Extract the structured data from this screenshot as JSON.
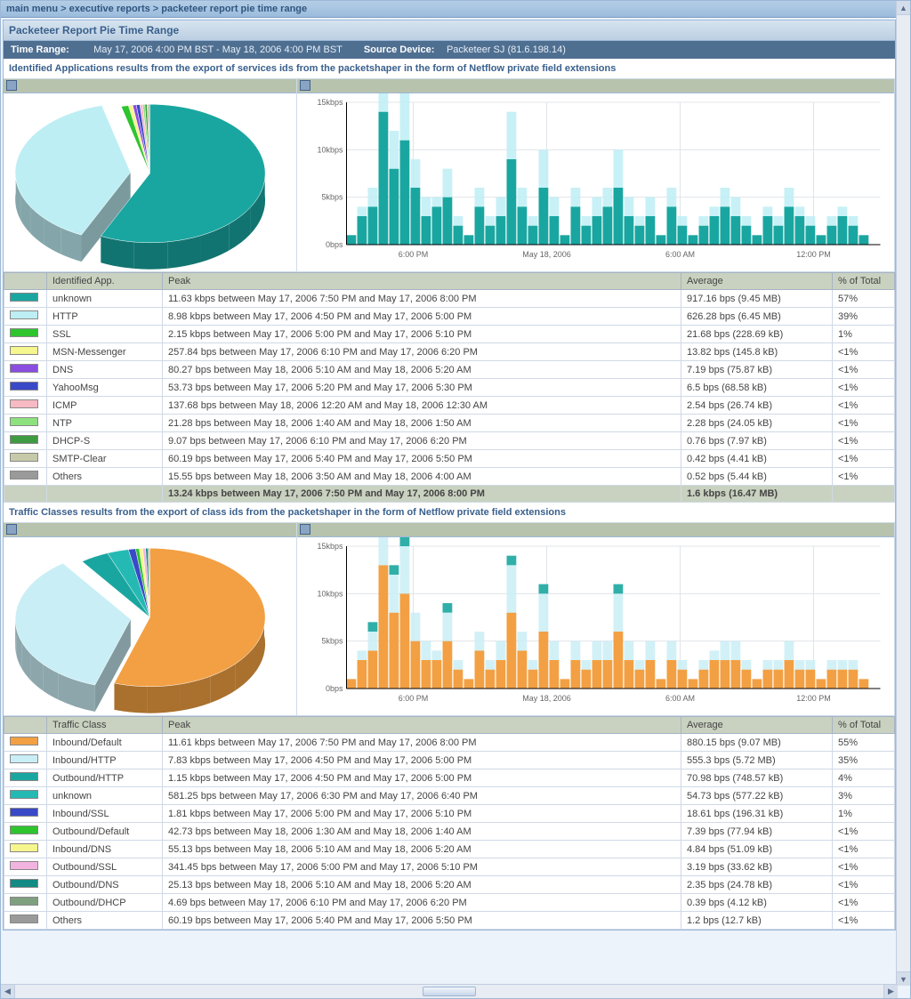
{
  "breadcrumb": {
    "a": "main menu",
    "b": "executive reports",
    "c": "packeteer report pie time range"
  },
  "title": "Packeteer Report Pie Time Range",
  "meta": {
    "tr_label": "Time Range:",
    "tr_value": "May 17, 2006 4:00 PM BST - May 18, 2006 4:00 PM BST",
    "sd_label": "Source Device:",
    "sd_value": "Packeteer SJ (81.6.198.14)"
  },
  "sections": [
    {
      "heading": "Identified Applications results from the export of services ids from the packetshaper in the form of Netflow private field extensions",
      "name_col": "Identified App.",
      "pie": {
        "explode_index": 1,
        "slices": [
          {
            "color": "#1aa6a0",
            "value": 57
          },
          {
            "color": "#bdeef4",
            "value": 39
          },
          {
            "color": "#2ec42e",
            "value": 1
          },
          {
            "color": "#f6f68e",
            "value": 0.6
          },
          {
            "color": "#8a4de0",
            "value": 0.5
          },
          {
            "color": "#3a49c7",
            "value": 0.5
          },
          {
            "color": "#f7b9c3",
            "value": 0.4
          },
          {
            "color": "#8de27e",
            "value": 0.3
          },
          {
            "color": "#3f9a42",
            "value": 0.3
          },
          {
            "color": "#c7caa8",
            "value": 0.2
          },
          {
            "color": "#9a9a9a",
            "value": 0.2
          }
        ],
        "swatch_colors": [
          "#1aa6a0",
          "#bdeef4",
          "#2ec42e",
          "#f6f68e",
          "#8a4de0",
          "#3a49c7",
          "#f7b9c3",
          "#8de27e",
          "#3f9a42",
          "#c7caa8",
          "#9a9a9a"
        ]
      },
      "timeseries": {
        "ymax": 15,
        "yticks": [
          "0bps",
          "5kbps",
          "10kbps",
          "15kbps"
        ],
        "xticks": [
          "6:00 PM",
          "May 18, 2006",
          "6:00 AM",
          "12:00 PM"
        ],
        "grid_color": "#e0e4ea",
        "series": [
          {
            "color": "#1aa6a0",
            "alpha": 1,
            "vals": [
              1,
              3,
              4,
              14,
              8,
              11,
              6,
              3,
              4,
              5,
              2,
              1,
              4,
              2,
              3,
              9,
              4,
              2,
              6,
              3,
              1,
              4,
              2,
              3,
              4,
              6,
              3,
              2,
              3,
              1,
              4,
              2,
              1,
              2,
              3,
              4,
              3,
              2,
              1,
              3,
              2,
              4,
              3,
              2,
              1,
              2,
              3,
              2,
              1,
              0
            ]
          },
          {
            "color": "#bdeef4",
            "alpha": 0.85,
            "vals": [
              0,
              1,
              2,
              6,
              4,
              5,
              3,
              2,
              1,
              3,
              1,
              0,
              2,
              1,
              2,
              5,
              2,
              1,
              4,
              2,
              0,
              2,
              1,
              2,
              2,
              4,
              2,
              1,
              2,
              0,
              2,
              1,
              0,
              1,
              1,
              2,
              2,
              1,
              0,
              1,
              1,
              2,
              1,
              1,
              0,
              1,
              1,
              1,
              0,
              0
            ]
          }
        ]
      },
      "rows": [
        {
          "name": "unknown",
          "peak": "11.63 kbps between May 17, 2006 7:50 PM and May 17, 2006 8:00 PM",
          "avg": "917.16 bps (9.45 MB)",
          "pct": "57%"
        },
        {
          "name": "HTTP",
          "peak": "8.98 kbps between May 17, 2006 4:50 PM and May 17, 2006 5:00 PM",
          "avg": "626.28 bps (6.45 MB)",
          "pct": "39%"
        },
        {
          "name": "SSL",
          "peak": "2.15 kbps between May 17, 2006 5:00 PM and May 17, 2006 5:10 PM",
          "avg": "21.68 bps (228.69 kB)",
          "pct": "1%"
        },
        {
          "name": "MSN-Messenger",
          "peak": "257.84 bps between May 17, 2006 6:10 PM and May 17, 2006 6:20 PM",
          "avg": "13.82 bps (145.8 kB)",
          "pct": "<1%"
        },
        {
          "name": "DNS",
          "peak": "80.27 bps between May 18, 2006 5:10 AM and May 18, 2006 5:20 AM",
          "avg": "7.19 bps (75.87 kB)",
          "pct": "<1%"
        },
        {
          "name": "YahooMsg",
          "peak": "53.73 bps between May 17, 2006 5:20 PM and May 17, 2006 5:30 PM",
          "avg": "6.5 bps (68.58 kB)",
          "pct": "<1%"
        },
        {
          "name": "ICMP",
          "peak": "137.68 bps between May 18, 2006 12:20 AM and May 18, 2006 12:30 AM",
          "avg": "2.54 bps (26.74 kB)",
          "pct": "<1%"
        },
        {
          "name": "NTP",
          "peak": "21.28 bps between May 18, 2006 1:40 AM and May 18, 2006 1:50 AM",
          "avg": "2.28 bps (24.05 kB)",
          "pct": "<1%"
        },
        {
          "name": "DHCP-S",
          "peak": "9.07 bps between May 17, 2006 6:10 PM and May 17, 2006 6:20 PM",
          "avg": "0.76 bps (7.97 kB)",
          "pct": "<1%"
        },
        {
          "name": "SMTP-Clear",
          "peak": "60.19 bps between May 17, 2006 5:40 PM and May 17, 2006 5:50 PM",
          "avg": "0.42 bps (4.41 kB)",
          "pct": "<1%"
        },
        {
          "name": "Others",
          "peak": "15.55 bps between May 18, 2006 3:50 AM and May 18, 2006 4:00 AM",
          "avg": "0.52 bps (5.44 kB)",
          "pct": "<1%"
        }
      ],
      "totals": {
        "peak": "13.24 kbps between May 17, 2006 7:50 PM and May 17, 2006 8:00 PM",
        "avg": "1.6 kbps (16.47 MB)",
        "pct": ""
      }
    },
    {
      "heading": "Traffic Classes results from the export of class ids from the packetshaper in the form of Netflow private field extensions",
      "name_col": "Traffic Class",
      "pie": {
        "explode_index": 1,
        "slices": [
          {
            "color": "#f2a043",
            "value": 55
          },
          {
            "color": "#c9eef6",
            "value": 35
          },
          {
            "color": "#1aa6a0",
            "value": 4
          },
          {
            "color": "#25b9b3",
            "value": 3
          },
          {
            "color": "#3a49c7",
            "value": 1
          },
          {
            "color": "#2ec42e",
            "value": 0.5
          },
          {
            "color": "#f6f68e",
            "value": 0.5
          },
          {
            "color": "#f3b3e1",
            "value": 0.4
          },
          {
            "color": "#138a84",
            "value": 0.3
          },
          {
            "color": "#7fa07f",
            "value": 0.2
          },
          {
            "color": "#9a9a9a",
            "value": 0.1
          }
        ],
        "swatch_colors": [
          "#f2a043",
          "#c9eef6",
          "#1aa6a0",
          "#25b9b3",
          "#3a49c7",
          "#2ec42e",
          "#f6f68e",
          "#f3b3e1",
          "#138a84",
          "#7fa07f",
          "#9a9a9a"
        ]
      },
      "timeseries": {
        "ymax": 15,
        "yticks": [
          "0bps",
          "5kbps",
          "10kbps",
          "15kbps"
        ],
        "xticks": [
          "6:00 PM",
          "May 18, 2006",
          "6:00 AM",
          "12:00 PM"
        ],
        "grid_color": "#e0e4ea",
        "series": [
          {
            "color": "#f2a043",
            "alpha": 1,
            "vals": [
              1,
              3,
              4,
              13,
              8,
              10,
              5,
              3,
              3,
              5,
              2,
              1,
              4,
              2,
              3,
              8,
              4,
              2,
              6,
              3,
              1,
              3,
              2,
              3,
              3,
              6,
              3,
              2,
              3,
              1,
              3,
              2,
              1,
              2,
              3,
              3,
              3,
              2,
              1,
              2,
              2,
              3,
              2,
              2,
              1,
              2,
              2,
              2,
              1,
              0
            ]
          },
          {
            "color": "#c9eef6",
            "alpha": 0.85,
            "vals": [
              0,
              1,
              2,
              6,
              4,
              5,
              3,
              2,
              1,
              3,
              1,
              0,
              2,
              1,
              2,
              5,
              2,
              1,
              4,
              2,
              0,
              2,
              1,
              2,
              2,
              4,
              2,
              1,
              2,
              0,
              2,
              1,
              0,
              1,
              1,
              2,
              2,
              1,
              0,
              1,
              1,
              2,
              1,
              1,
              0,
              1,
              1,
              1,
              0,
              0
            ]
          },
          {
            "color": "#1aa6a0",
            "alpha": 0.9,
            "vals": [
              0,
              0,
              1,
              2,
              1,
              1,
              0,
              0,
              0,
              1,
              0,
              0,
              0,
              0,
              0,
              1,
              0,
              0,
              1,
              0,
              0,
              0,
              0,
              0,
              0,
              1,
              0,
              0,
              0,
              0,
              0,
              0,
              0,
              0,
              0,
              0,
              0,
              0,
              0,
              0,
              0,
              0,
              0,
              0,
              0,
              0,
              0,
              0,
              0,
              0
            ]
          }
        ]
      },
      "rows": [
        {
          "name": "Inbound/Default",
          "peak": "11.61 kbps between May 17, 2006 7:50 PM and May 17, 2006 8:00 PM",
          "avg": "880.15 bps (9.07 MB)",
          "pct": "55%"
        },
        {
          "name": "Inbound/HTTP",
          "peak": "7.83 kbps between May 17, 2006 4:50 PM and May 17, 2006 5:00 PM",
          "avg": "555.3 bps (5.72 MB)",
          "pct": "35%"
        },
        {
          "name": "Outbound/HTTP",
          "peak": "1.15 kbps between May 17, 2006 4:50 PM and May 17, 2006 5:00 PM",
          "avg": "70.98 bps (748.57 kB)",
          "pct": "4%"
        },
        {
          "name": "unknown",
          "peak": "581.25 bps between May 17, 2006 6:30 PM and May 17, 2006 6:40 PM",
          "avg": "54.73 bps (577.22 kB)",
          "pct": "3%"
        },
        {
          "name": "Inbound/SSL",
          "peak": "1.81 kbps between May 17, 2006 5:00 PM and May 17, 2006 5:10 PM",
          "avg": "18.61 bps (196.31 kB)",
          "pct": "1%"
        },
        {
          "name": "Outbound/Default",
          "peak": "42.73 bps between May 18, 2006 1:30 AM and May 18, 2006 1:40 AM",
          "avg": "7.39 bps (77.94 kB)",
          "pct": "<1%"
        },
        {
          "name": "Inbound/DNS",
          "peak": "55.13 bps between May 18, 2006 5:10 AM and May 18, 2006 5:20 AM",
          "avg": "4.84 bps (51.09 kB)",
          "pct": "<1%"
        },
        {
          "name": "Outbound/SSL",
          "peak": "341.45 bps between May 17, 2006 5:00 PM and May 17, 2006 5:10 PM",
          "avg": "3.19 bps (33.62 kB)",
          "pct": "<1%"
        },
        {
          "name": "Outbound/DNS",
          "peak": "25.13 bps between May 18, 2006 5:10 AM and May 18, 2006 5:20 AM",
          "avg": "2.35 bps (24.78 kB)",
          "pct": "<1%"
        },
        {
          "name": "Outbound/DHCP",
          "peak": "4.69 bps between May 17, 2006 6:10 PM and May 17, 2006 6:20 PM",
          "avg": "0.39 bps (4.12 kB)",
          "pct": "<1%"
        },
        {
          "name": "Others",
          "peak": "60.19 bps between May 17, 2006 5:40 PM and May 17, 2006 5:50 PM",
          "avg": "1.2 bps (12.7 kB)",
          "pct": "<1%"
        }
      ],
      "totals": null
    }
  ],
  "headers": {
    "peak": "Peak",
    "avg": "Average",
    "pct": "% of Total"
  }
}
